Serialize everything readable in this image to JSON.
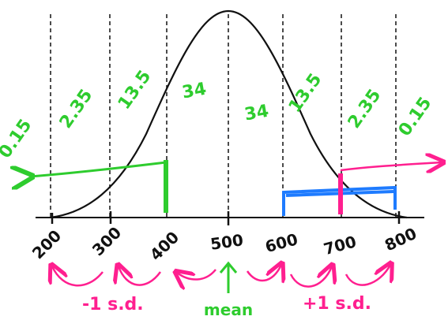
{
  "colors": {
    "green": "#2ecc2e",
    "pink": "#ff1f8f",
    "blue": "#1e7bff",
    "ink": "#111111"
  },
  "diagram": {
    "percent_labels": [
      "0.15",
      "2.35",
      "13.5",
      "34",
      "34",
      "13.5",
      "2.35",
      "0.15"
    ],
    "tick_labels": [
      "200",
      "300",
      "400",
      "500",
      "600",
      "700",
      "800"
    ],
    "minus_sd_label": "-1 s.d.",
    "plus_sd_label": "+1 s.d.",
    "mean_label": "mean"
  }
}
